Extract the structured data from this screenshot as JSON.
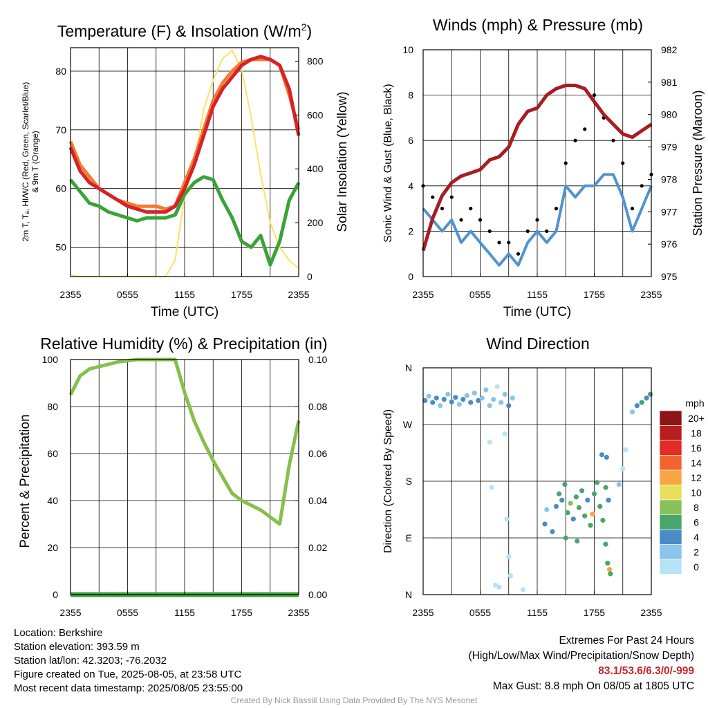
{
  "colors": {
    "temp": "#d62228",
    "dewpoint": "#3aa337",
    "heat_index": "#d62228",
    "temp9m": "#f47a30",
    "insolation": "#f7e463",
    "wind": "#4f94cf",
    "gust": "#000000",
    "pressure": "#a61e22",
    "rh": "#86c04b",
    "precip": "#3aa337",
    "speed_legend": [
      "#b7e3f7",
      "#8cc4ea",
      "#4a8cc8",
      "#4aa56a",
      "#88c15a",
      "#e6e05a",
      "#f9a544",
      "#f2642d",
      "#e42b26",
      "#b81e20",
      "#8b1517"
    ]
  },
  "chart_data": [
    {
      "type": "line",
      "title": "Temperature (F) & Insolation (W/m²)",
      "title_main": "Temperature (F) & Insolation (W/m",
      "title_sup": "2",
      "title_end": ")",
      "xlabel": "Time (UTC)",
      "ylabel_line1": "2m T, Tₐ, HI/WC (Red, Green, Scarlet/Blue)",
      "ylabel_line2": "& 9m T (Orange)",
      "ylabel2": "Solar Insolation (Yellow)",
      "xticks": [
        "2355",
        "0555",
        "1155",
        "1755",
        "2355"
      ],
      "yticks": [
        50,
        60,
        70,
        80
      ],
      "y2ticks": [
        0,
        200,
        400,
        600,
        800
      ],
      "ylim": [
        45,
        84
      ],
      "y2lim": [
        0,
        850
      ],
      "x_hours": [
        0,
        1,
        2,
        3,
        4,
        5,
        6,
        7,
        8,
        9,
        10,
        11,
        12,
        13,
        14,
        15,
        16,
        17,
        18,
        19,
        20,
        21,
        22,
        23,
        24
      ],
      "series": [
        {
          "key": "temp",
          "axis": "left",
          "values": [
            67,
            63,
            61,
            60,
            59,
            58,
            57,
            56.5,
            56,
            56,
            56,
            57,
            60,
            64,
            69,
            74,
            77,
            79,
            81,
            82,
            82.5,
            82,
            81,
            77,
            69
          ]
        },
        {
          "key": "temp9m",
          "axis": "left",
          "values": [
            68,
            64,
            62,
            60,
            59,
            58,
            57.5,
            57,
            57,
            57,
            56.5,
            57,
            61,
            65,
            70,
            75,
            78,
            80,
            81.5,
            82,
            82,
            82,
            81,
            76,
            70
          ]
        },
        {
          "key": "dewpoint",
          "axis": "left",
          "values": [
            61.5,
            59.5,
            57.5,
            57,
            56,
            55.5,
            55,
            54.5,
            55,
            55,
            55,
            55.5,
            59,
            61,
            62,
            61.5,
            58,
            55,
            51,
            50,
            52,
            47,
            51,
            58,
            61
          ]
        },
        {
          "key": "insolation",
          "axis": "right",
          "values": [
            5,
            0,
            0,
            0,
            0,
            0,
            0,
            0,
            0,
            0,
            0,
            60,
            300,
            420,
            620,
            730,
            810,
            840,
            770,
            590,
            380,
            200,
            110,
            60,
            30
          ]
        }
      ]
    },
    {
      "type": "line",
      "title": "Winds (mph) & Pressure (mb)",
      "xlabel": "Time (UTC)",
      "ylabel": "Sonic Wind & Gust (Blue, Black)",
      "ylabel2": "Station Pressure (Maroon)",
      "xticks": [
        "2355",
        "0555",
        "1155",
        "1755",
        "2355"
      ],
      "yticks": [
        0,
        2,
        4,
        6,
        8,
        10
      ],
      "y2ticks": [
        975,
        976,
        977,
        978,
        979,
        980,
        981,
        982
      ],
      "ylim": [
        0,
        10
      ],
      "y2lim": [
        975,
        982
      ],
      "x_hours": [
        0,
        1,
        2,
        3,
        4,
        5,
        6,
        7,
        8,
        9,
        10,
        11,
        12,
        13,
        14,
        15,
        16,
        17,
        18,
        19,
        20,
        21,
        22,
        23,
        24
      ],
      "series": [
        {
          "key": "wind",
          "axis": "left",
          "values": [
            3,
            2.5,
            2,
            2.5,
            1.5,
            2,
            1.5,
            1,
            0.5,
            1,
            0.5,
            1.5,
            2,
            1.5,
            2,
            4,
            3.5,
            4,
            4,
            4.5,
            4.5,
            3.5,
            2,
            3,
            4
          ]
        },
        {
          "key": "gust",
          "axis": "left",
          "values": [
            4,
            3.5,
            3,
            3.5,
            2.5,
            3,
            2.5,
            2,
            1.5,
            1.5,
            1,
            2,
            2.5,
            2,
            3,
            5,
            6,
            6.5,
            8,
            7,
            6,
            5,
            3,
            4,
            4.5
          ]
        },
        {
          "key": "pressure",
          "axis": "right",
          "values": [
            975.8,
            976.8,
            977.5,
            977.9,
            978.1,
            978.2,
            978.3,
            978.6,
            978.7,
            979,
            979.7,
            980.1,
            980.2,
            980.6,
            980.8,
            980.9,
            980.9,
            980.8,
            980.4,
            980,
            979.7,
            979.4,
            979.3,
            979.5,
            979.7
          ]
        }
      ]
    },
    {
      "type": "line",
      "title": "Relative Humidity (%) & Precipitation (in)",
      "xlabel": "",
      "ylabel": "Percent & Precipitation",
      "xticks": [
        "2355",
        "0555",
        "1155",
        "1755",
        "2355"
      ],
      "yticks": [
        0,
        20,
        40,
        60,
        80,
        100
      ],
      "y2ticks": [
        "0.00",
        "0.02",
        "0.04",
        "0.06",
        "0.08",
        "0.10"
      ],
      "ylim": [
        0,
        100
      ],
      "y2lim": [
        0,
        0.1
      ],
      "x_hours": [
        0,
        1,
        2,
        3,
        4,
        5,
        6,
        7,
        8,
        9,
        10,
        11,
        12,
        13,
        14,
        15,
        16,
        17,
        18,
        19,
        20,
        21,
        22,
        23,
        24
      ],
      "series": [
        {
          "key": "rh",
          "axis": "left",
          "values": [
            85,
            93,
            96,
            97,
            98,
            99,
            99.5,
            100,
            100,
            100,
            100,
            100,
            86,
            74,
            65,
            57,
            50,
            43,
            40,
            38,
            36,
            33,
            30,
            55,
            74
          ]
        },
        {
          "key": "precip",
          "axis": "right",
          "values": [
            0,
            0,
            0,
            0,
            0,
            0,
            0,
            0,
            0,
            0,
            0,
            0,
            0,
            0,
            0,
            0,
            0,
            0,
            0,
            0,
            0,
            0,
            0,
            0,
            0
          ]
        }
      ]
    },
    {
      "type": "scatter",
      "title": "Wind Direction",
      "ylabel": "Direction (Colored By Speed)",
      "xticks": [
        "2355",
        "0555",
        "1155",
        "1755",
        "2355"
      ],
      "yticks": [
        "N",
        "E",
        "S",
        "W",
        "N"
      ],
      "ylim": [
        0,
        360
      ],
      "legend_title": "mph",
      "legend_labels": [
        "0",
        "2",
        "4",
        "6",
        "8",
        "10",
        "12",
        "14",
        "16",
        "18",
        "20+"
      ],
      "points": [
        {
          "x": 0.2,
          "y": 308,
          "s": 2
        },
        {
          "x": 0.6,
          "y": 315,
          "s": 1
        },
        {
          "x": 1.0,
          "y": 305,
          "s": 2
        },
        {
          "x": 1.4,
          "y": 312,
          "s": 2
        },
        {
          "x": 1.8,
          "y": 300,
          "s": 1
        },
        {
          "x": 2.2,
          "y": 310,
          "s": 2
        },
        {
          "x": 2.6,
          "y": 318,
          "s": 1
        },
        {
          "x": 3.0,
          "y": 306,
          "s": 2
        },
        {
          "x": 3.4,
          "y": 313,
          "s": 2
        },
        {
          "x": 3.8,
          "y": 302,
          "s": 1
        },
        {
          "x": 4.2,
          "y": 310,
          "s": 2
        },
        {
          "x": 4.6,
          "y": 316,
          "s": 1
        },
        {
          "x": 5.0,
          "y": 305,
          "s": 2
        },
        {
          "x": 5.4,
          "y": 320,
          "s": 1
        },
        {
          "x": 5.8,
          "y": 308,
          "s": 2
        },
        {
          "x": 6.2,
          "y": 312,
          "s": 1
        },
        {
          "x": 6.6,
          "y": 325,
          "s": 1
        },
        {
          "x": 7.0,
          "y": 300,
          "s": 1
        },
        {
          "x": 7.4,
          "y": 310,
          "s": 1
        },
        {
          "x": 7.8,
          "y": 330,
          "s": 0
        },
        {
          "x": 8.2,
          "y": 305,
          "s": 1
        },
        {
          "x": 8.6,
          "y": 318,
          "s": 1
        },
        {
          "x": 9.0,
          "y": 300,
          "s": 2
        },
        {
          "x": 9.4,
          "y": 312,
          "s": 1
        },
        {
          "x": 7.0,
          "y": 242,
          "s": 0
        },
        {
          "x": 7.2,
          "y": 170,
          "s": 0
        },
        {
          "x": 7.6,
          "y": 15,
          "s": 0
        },
        {
          "x": 8.0,
          "y": 12,
          "s": 0
        },
        {
          "x": 8.6,
          "y": 255,
          "s": 0
        },
        {
          "x": 8.8,
          "y": 120,
          "s": 0
        },
        {
          "x": 9.0,
          "y": 60,
          "s": 0
        },
        {
          "x": 9.2,
          "y": 30,
          "s": 0
        },
        {
          "x": 10.5,
          "y": 8,
          "s": 0
        },
        {
          "x": 14.0,
          "y": 140,
          "s": 2
        },
        {
          "x": 14.3,
          "y": 160,
          "s": 3
        },
        {
          "x": 14.6,
          "y": 150,
          "s": 2
        },
        {
          "x": 14.9,
          "y": 175,
          "s": 3
        },
        {
          "x": 15.2,
          "y": 130,
          "s": 3
        },
        {
          "x": 15.5,
          "y": 145,
          "s": 4
        },
        {
          "x": 15.8,
          "y": 120,
          "s": 2
        },
        {
          "x": 16.1,
          "y": 155,
          "s": 3
        },
        {
          "x": 16.4,
          "y": 138,
          "s": 3
        },
        {
          "x": 16.7,
          "y": 165,
          "s": 3
        },
        {
          "x": 17.0,
          "y": 125,
          "s": 3
        },
        {
          "x": 17.3,
          "y": 150,
          "s": 2
        },
        {
          "x": 17.6,
          "y": 110,
          "s": 3
        },
        {
          "x": 17.8,
          "y": 128,
          "s": 6
        },
        {
          "x": 18.0,
          "y": 160,
          "s": 3
        },
        {
          "x": 18.3,
          "y": 178,
          "s": 3
        },
        {
          "x": 18.6,
          "y": 140,
          "s": 3
        },
        {
          "x": 18.9,
          "y": 118,
          "s": 3
        },
        {
          "x": 19.2,
          "y": 170,
          "s": 3
        },
        {
          "x": 19.5,
          "y": 150,
          "s": 2
        },
        {
          "x": 19.4,
          "y": 50,
          "s": 3
        },
        {
          "x": 19.6,
          "y": 40,
          "s": 6
        },
        {
          "x": 19.7,
          "y": 33,
          "s": 3
        },
        {
          "x": 19.2,
          "y": 80,
          "s": 3
        },
        {
          "x": 18.8,
          "y": 222,
          "s": 2
        },
        {
          "x": 19.3,
          "y": 218,
          "s": 2
        },
        {
          "x": 20.6,
          "y": 175,
          "s": 1
        },
        {
          "x": 21.0,
          "y": 200,
          "s": 0
        },
        {
          "x": 21.3,
          "y": 230,
          "s": 0
        },
        {
          "x": 22.0,
          "y": 290,
          "s": 1
        },
        {
          "x": 22.5,
          "y": 300,
          "s": 2
        },
        {
          "x": 23.0,
          "y": 305,
          "s": 3
        },
        {
          "x": 23.5,
          "y": 312,
          "s": 2
        },
        {
          "x": 23.9,
          "y": 318,
          "s": 3
        },
        {
          "x": 13.0,
          "y": 135,
          "s": 1
        },
        {
          "x": 12.8,
          "y": 112,
          "s": 2
        },
        {
          "x": 15.0,
          "y": 90,
          "s": 3
        },
        {
          "x": 16.2,
          "y": 85,
          "s": 3
        },
        {
          "x": 13.6,
          "y": 100,
          "s": 2
        }
      ]
    }
  ],
  "footer": {
    "location": "Location: Berkshire",
    "elevation": "Station elevation: 393.59 m",
    "latlon": "Station lat/lon: 42.3203; -76.2032",
    "created": "Figure created on Tue, 2025-08-05, at 23:58 UTC",
    "recent": "Most recent data timestamp: 2025/08/05 23:55:00",
    "extremes_title": "Extremes For Past 24 Hours",
    "extremes_sub": "(High/Low/Max Wind/Precipitation/Snow Depth)",
    "extremes_values": "83.1/53.6/6.3/0/-999",
    "max_gust": "Max Gust: 8.8 mph On 08/05 at 1805 UTC",
    "credit": "Created By Nick Bassill Using Data Provided By The NYS Mesonet"
  }
}
